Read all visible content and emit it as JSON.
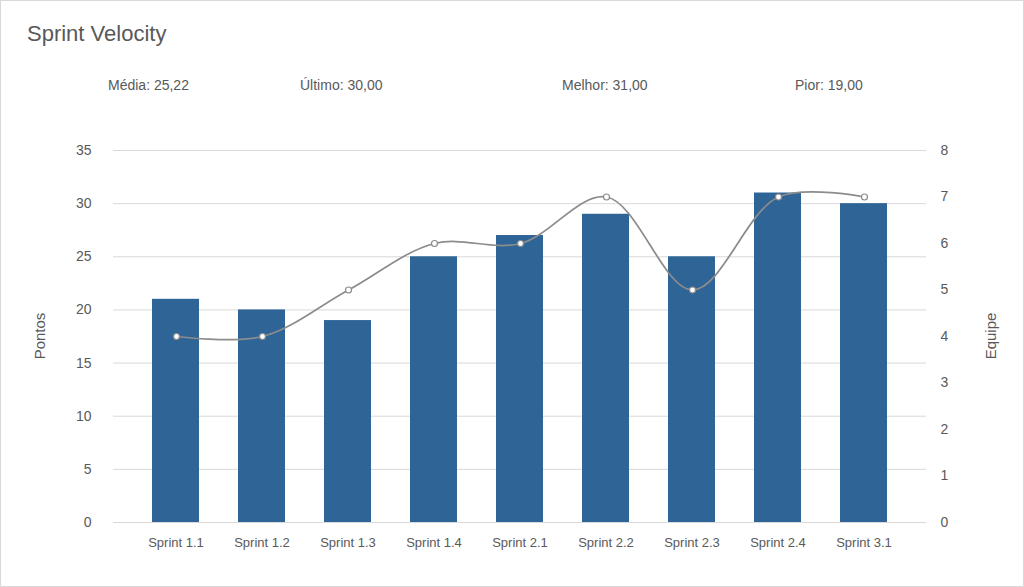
{
  "chart_data": {
    "type": "bar",
    "title": "Sprint Velocity",
    "annotations": [
      "Média: 25,22",
      "Último: 30,00",
      "Melhor: 31,00",
      "Pior: 19,00"
    ],
    "categories": [
      "Sprint 1.1",
      "Sprint 1.2",
      "Sprint 1.3",
      "Sprint 1.4",
      "Sprint 2.1",
      "Sprint 2.2",
      "Sprint 2.3",
      "Sprint 2.4",
      "Sprint 3.1"
    ],
    "ylabel": "Pontos",
    "y2label": "Equipe",
    "series": [
      {
        "type": "bar",
        "color": "#2e6496",
        "values": [
          21,
          20,
          19,
          25,
          27,
          29,
          25,
          31,
          30
        ]
      },
      {
        "type": "line",
        "axis": "y2",
        "color": "#8c8c8c",
        "marker": "circle",
        "line_style": "smooth",
        "values": [
          4,
          4,
          5,
          6,
          6,
          7,
          5,
          7,
          7
        ]
      }
    ],
    "ylim": [
      0,
      35
    ],
    "yticks": [
      0,
      5,
      10,
      15,
      20,
      25,
      30,
      35
    ],
    "y2lim": [
      0,
      8
    ],
    "y2ticks": [
      0,
      1,
      2,
      3,
      4,
      5,
      6,
      7,
      8
    ],
    "grid": true
  }
}
